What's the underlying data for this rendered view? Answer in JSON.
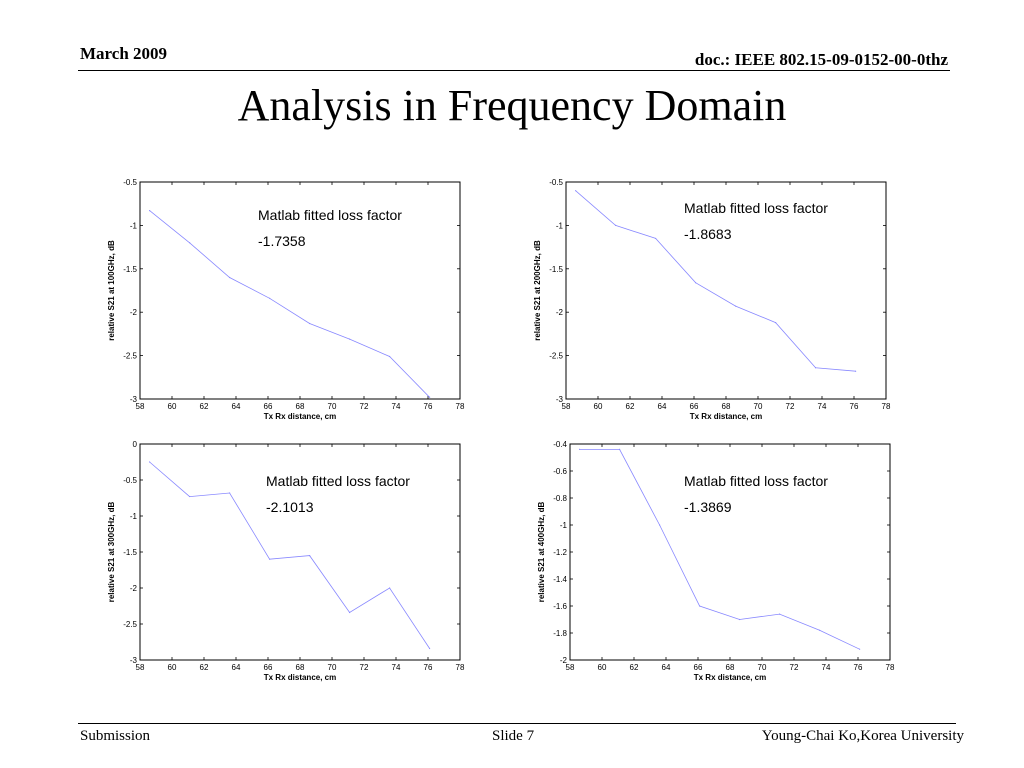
{
  "header": {
    "date": "March 2009",
    "doc": "doc.: IEEE 802.15-09-0152-00-0thz"
  },
  "title": "Analysis in Frequency Domain",
  "footer": {
    "left": "Submission",
    "center": "Slide 7",
    "right": "Young-Chai Ko,Korea University"
  },
  "colors": {
    "line": "#8888ff",
    "axis": "#000000"
  },
  "chart_data": [
    {
      "type": "line",
      "xlabel": "Tx Rx distance, cm",
      "ylabel": "relative S21 at 100GHz, dB",
      "xlim": [
        58,
        78
      ],
      "ylim": [
        -3,
        -0.5
      ],
      "xticks": [
        58,
        60,
        62,
        64,
        66,
        68,
        70,
        72,
        74,
        76,
        78
      ],
      "yticks": [
        -3,
        -2.5,
        -2,
        -1.5,
        -1,
        -0.5
      ],
      "annotation": [
        "Matlab fitted loss factor",
        "-1.7358"
      ],
      "x": [
        58.6,
        61.1,
        63.6,
        66.1,
        68.6,
        71.1,
        73.6,
        76.1
      ],
      "y": [
        -0.83,
        -1.2,
        -1.6,
        -1.84,
        -2.13,
        -2.31,
        -2.51,
        -2.98
      ]
    },
    {
      "type": "line",
      "xlabel": "Tx Rx distance, cm",
      "ylabel": "relative S21 at 200GHz, dB",
      "xlim": [
        58,
        78
      ],
      "ylim": [
        -3,
        -0.5
      ],
      "xticks": [
        58,
        60,
        62,
        64,
        66,
        68,
        70,
        72,
        74,
        76,
        78
      ],
      "yticks": [
        -3,
        -2.5,
        -2,
        -1.5,
        -1,
        -0.5
      ],
      "annotation": [
        "Matlab fitted loss factor",
        "-1.8683"
      ],
      "x": [
        58.6,
        61.1,
        63.6,
        66.1,
        68.6,
        71.1,
        73.6,
        76.1
      ],
      "y": [
        -0.6,
        -1.0,
        -1.15,
        -1.66,
        -1.93,
        -2.12,
        -2.64,
        -2.68
      ]
    },
    {
      "type": "line",
      "xlabel": "Tx Rx distance, cm",
      "ylabel": "relative S21 at 300GHz, dB",
      "xlim": [
        58,
        78
      ],
      "ylim": [
        -3,
        0
      ],
      "xticks": [
        58,
        60,
        62,
        64,
        66,
        68,
        70,
        72,
        74,
        76,
        78
      ],
      "yticks": [
        -3,
        -2.5,
        -2,
        -1.5,
        -1,
        -0.5,
        0
      ],
      "annotation": [
        "Matlab fitted loss factor",
        "-2.1013"
      ],
      "x": [
        58.6,
        61.1,
        63.6,
        66.1,
        68.6,
        71.1,
        73.6,
        76.1
      ],
      "y": [
        -0.25,
        -0.73,
        -0.68,
        -1.6,
        -1.55,
        -2.34,
        -2.0,
        -2.84
      ]
    },
    {
      "type": "line",
      "xlabel": "Tx Rx distance, cm",
      "ylabel": "relative S21 at 400GHz, dB",
      "xlim": [
        58,
        78
      ],
      "ylim": [
        -2,
        -0.4
      ],
      "xticks": [
        58,
        60,
        62,
        64,
        66,
        68,
        70,
        72,
        74,
        76,
        78
      ],
      "yticks": [
        -2,
        -1.8,
        -1.6,
        -1.4,
        -1.2,
        -1,
        -0.8,
        -0.6,
        -0.4
      ],
      "annotation": [
        "Matlab fitted loss factor",
        "-1.3869"
      ],
      "x": [
        58.6,
        61.1,
        63.6,
        66.1,
        68.6,
        71.1,
        73.6,
        76.1
      ],
      "y": [
        -0.44,
        -0.44,
        -1.0,
        -1.6,
        -1.7,
        -1.66,
        -1.78,
        -1.92
      ]
    }
  ]
}
